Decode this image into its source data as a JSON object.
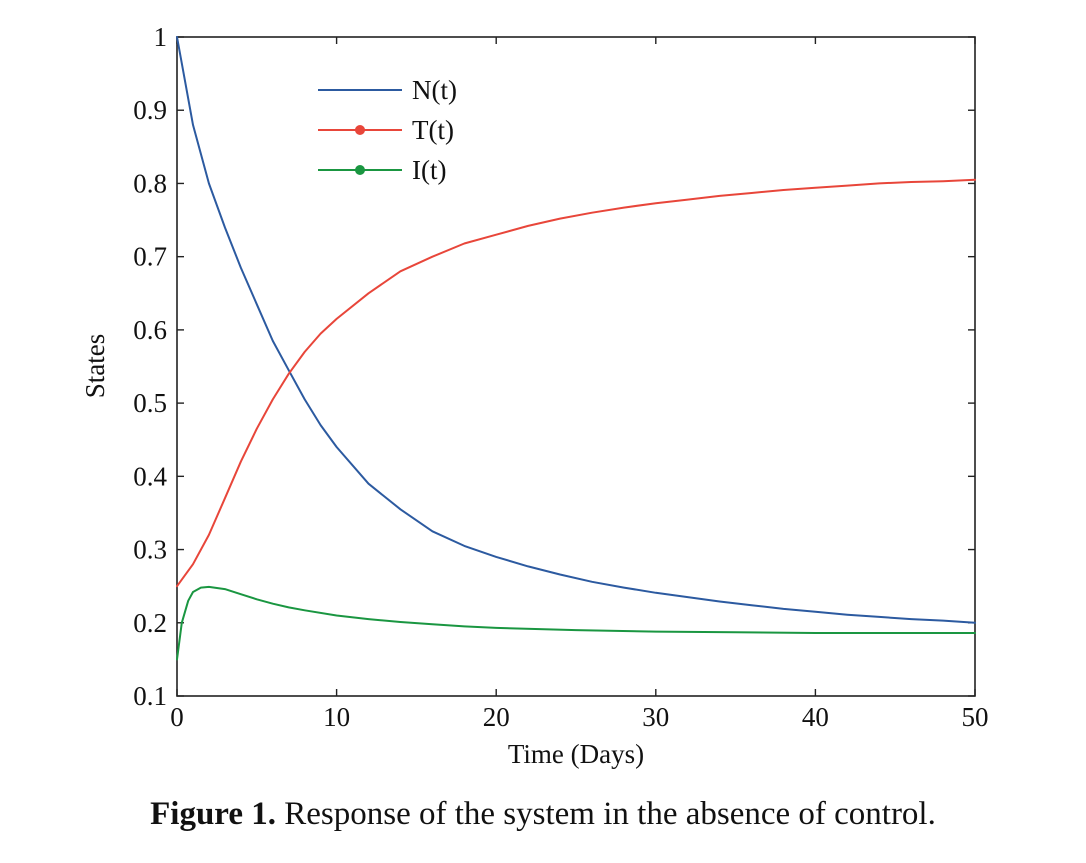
{
  "chart_data": {
    "type": "line",
    "xlabel": "Time (Days)",
    "ylabel": "States",
    "xlim": [
      0,
      50
    ],
    "ylim": [
      0.1,
      1.0
    ],
    "x_ticks": [
      0,
      10,
      20,
      30,
      40,
      50
    ],
    "x_tick_labels": [
      "0",
      "10",
      "20",
      "30",
      "40",
      "50"
    ],
    "y_ticks": [
      0.1,
      0.2,
      0.3,
      0.4,
      0.5,
      0.6,
      0.7,
      0.8,
      0.9,
      1.0
    ],
    "y_tick_labels": [
      "0.1",
      "0.2",
      "0.3",
      "0.4",
      "0.5",
      "0.6",
      "0.7",
      "0.8",
      "0.9",
      "1"
    ],
    "grid": false,
    "legend_position": "top-left",
    "series": [
      {
        "name": "N(t)",
        "color": "#2c5aa0",
        "marker": "none",
        "x": [
          0,
          0.5,
          1,
          2,
          3,
          4,
          5,
          6,
          7,
          8,
          9,
          10,
          12,
          14,
          16,
          18,
          20,
          22,
          24,
          26,
          28,
          30,
          32,
          34,
          36,
          38,
          40,
          42,
          44,
          46,
          48,
          50
        ],
        "y": [
          1.0,
          0.94,
          0.88,
          0.8,
          0.74,
          0.685,
          0.635,
          0.585,
          0.545,
          0.505,
          0.47,
          0.44,
          0.39,
          0.355,
          0.325,
          0.305,
          0.29,
          0.277,
          0.266,
          0.256,
          0.248,
          0.241,
          0.235,
          0.229,
          0.224,
          0.219,
          0.215,
          0.211,
          0.208,
          0.205,
          0.203,
          0.2
        ]
      },
      {
        "name": "T(t)",
        "color": "#e8463a",
        "marker": "circle",
        "x": [
          0,
          1,
          2,
          3,
          4,
          5,
          6,
          7,
          8,
          9,
          10,
          12,
          14,
          16,
          18,
          20,
          22,
          24,
          26,
          28,
          30,
          32,
          34,
          36,
          38,
          40,
          42,
          44,
          46,
          48,
          50
        ],
        "y": [
          0.25,
          0.28,
          0.32,
          0.37,
          0.42,
          0.465,
          0.505,
          0.54,
          0.57,
          0.595,
          0.615,
          0.65,
          0.68,
          0.7,
          0.718,
          0.73,
          0.742,
          0.752,
          0.76,
          0.767,
          0.773,
          0.778,
          0.783,
          0.787,
          0.791,
          0.794,
          0.797,
          0.8,
          0.802,
          0.803,
          0.805
        ]
      },
      {
        "name": "I(t)",
        "color": "#1a9641",
        "marker": "circle",
        "x": [
          0,
          0.3,
          0.7,
          1,
          1.5,
          2,
          3,
          4,
          5,
          6,
          7,
          8,
          10,
          12,
          14,
          16,
          18,
          20,
          25,
          30,
          35,
          40,
          45,
          50
        ],
        "y": [
          0.15,
          0.2,
          0.23,
          0.242,
          0.248,
          0.249,
          0.246,
          0.239,
          0.232,
          0.226,
          0.221,
          0.217,
          0.21,
          0.205,
          0.201,
          0.198,
          0.195,
          0.193,
          0.19,
          0.188,
          0.187,
          0.186,
          0.186,
          0.186
        ]
      }
    ]
  },
  "caption": {
    "label": "Figure 1.",
    "text": " Response of the system in the absence of control."
  }
}
